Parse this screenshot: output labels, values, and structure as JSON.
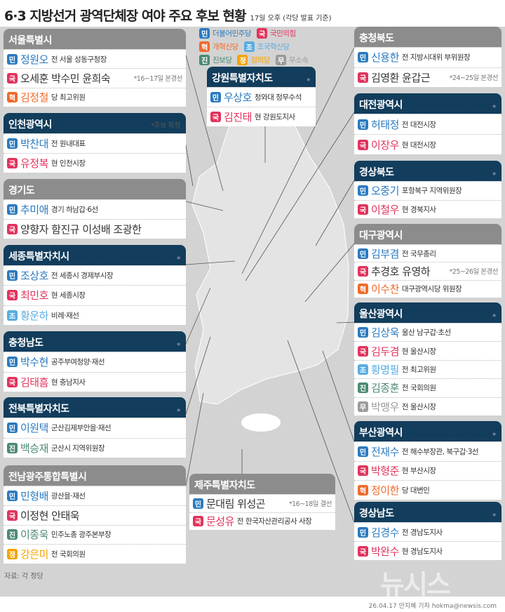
{
  "title": "6·3 지방선거 광역단체장 여야 주요 후보 현황",
  "subtitle": "17일 오후  (각당 발표 기준)",
  "parties": {
    "민": {
      "name": "더불어민주당",
      "color": "#2a7abf"
    },
    "국": {
      "name": "국민의힘",
      "color": "#e2335d"
    },
    "혁": {
      "name": "개혁신당",
      "color": "#f06a2a"
    },
    "조": {
      "name": "조국혁신당",
      "color": "#58ace2"
    },
    "진": {
      "name": "진보당",
      "color": "#4b8a72"
    },
    "정": {
      "name": "정의당",
      "color": "#f4a400"
    },
    "무": {
      "name": "무소속",
      "color": "#9b9b9b"
    }
  },
  "legend_rows": [
    [
      "민",
      "국"
    ],
    [
      "혁",
      "조"
    ],
    [
      "진",
      "정",
      "무"
    ]
  ],
  "boxes": [
    {
      "title": "서울특별시",
      "style": "gray",
      "rows": [
        {
          "party": "민",
          "names": "정원오",
          "desc": "전 서울 성동구청장"
        },
        {
          "party": "국",
          "names": "오세훈 박수민 윤희숙",
          "note": "*16~17일 본경선"
        },
        {
          "party": "혁",
          "names": "김정철",
          "desc": "당 최고위원"
        }
      ]
    },
    {
      "title": "인천광역시",
      "style": "navy",
      "note": "*후보 확정",
      "rows": [
        {
          "party": "민",
          "names": "박찬대",
          "desc": "전 원내대표"
        },
        {
          "party": "국",
          "names": "유정복",
          "desc": "현 인천시장"
        }
      ]
    },
    {
      "title": "경기도",
      "style": "gray",
      "rows": [
        {
          "party": "민",
          "names": "추미애",
          "desc": "경기 하남갑·6선"
        },
        {
          "party": "국",
          "names": "양향자 함진규 이성배 조광한"
        }
      ]
    },
    {
      "title": "세종특별자치시",
      "style": "navy",
      "mark": "*",
      "rows": [
        {
          "party": "민",
          "names": "조상호",
          "desc": "전 세종시 경제부시장"
        },
        {
          "party": "국",
          "names": "최민호",
          "desc": "현 세종시장"
        },
        {
          "party": "조",
          "names": "황운하",
          "desc": "비례·재선"
        }
      ]
    },
    {
      "title": "충청남도",
      "style": "navy",
      "mark": "*",
      "rows": [
        {
          "party": "민",
          "names": "박수현",
          "desc": "공주부여청양·재선"
        },
        {
          "party": "국",
          "names": "김태흠",
          "desc": "현 충남지사"
        }
      ]
    },
    {
      "title": "전북특별자치도",
      "style": "navy",
      "mark": "*",
      "rows": [
        {
          "party": "민",
          "names": "이원택",
          "desc": "군산김제부안을·재선"
        },
        {
          "party": "진",
          "names": "백승재",
          "desc": "군산시 지역위원장"
        }
      ]
    },
    {
      "title": "전남광주통합특별시",
      "style": "gray",
      "rows": [
        {
          "party": "민",
          "names": "민형배",
          "desc": "광산을·재선"
        },
        {
          "party": "국",
          "names": "이정현 안태욱"
        },
        {
          "party": "진",
          "names": "이종욱",
          "desc": "민주노총 광주본부장"
        },
        {
          "party": "정",
          "names": "강은미",
          "desc": "전 국회의원"
        }
      ]
    },
    {
      "title": "충청북도",
      "style": "gray",
      "rows": [
        {
          "party": "민",
          "names": "신용한",
          "desc": "전 지방시대위 부위원장"
        },
        {
          "party": "국",
          "names": "김영환 윤갑근",
          "note": "*24~25일 본경선"
        }
      ]
    },
    {
      "title": "대전광역시",
      "style": "navy",
      "mark": "*",
      "rows": [
        {
          "party": "민",
          "names": "허태정",
          "desc": "전 대전시장"
        },
        {
          "party": "국",
          "names": "이장우",
          "desc": "현 대전시장"
        }
      ]
    },
    {
      "title": "경상북도",
      "style": "navy",
      "mark": "*",
      "rows": [
        {
          "party": "민",
          "names": "오중기",
          "desc": "포항북구 지역위원장"
        },
        {
          "party": "국",
          "names": "이철우",
          "desc": "현 경북지사"
        }
      ]
    },
    {
      "title": "대구광역시",
      "style": "gray",
      "rows": [
        {
          "party": "민",
          "names": "김부겸",
          "desc": "전 국무총리"
        },
        {
          "party": "국",
          "names": "추경호 유영하",
          "note": "*25~26일 본경선"
        },
        {
          "party": "혁",
          "names": "이수찬",
          "desc": "대구광역시당 위원장"
        }
      ]
    },
    {
      "title": "울산광역시",
      "style": "navy",
      "mark": "*",
      "rows": [
        {
          "party": "민",
          "names": "김상욱",
          "desc": "울산 남구갑·초선"
        },
        {
          "party": "국",
          "names": "김두겸",
          "desc": "현 울산시장"
        },
        {
          "party": "조",
          "names": "황명필",
          "desc": "전 최고위원"
        },
        {
          "party": "진",
          "names": "김종훈",
          "desc": "전 국회의원"
        },
        {
          "party": "무",
          "names": "박맹우",
          "desc": "전 울산시장"
        }
      ]
    },
    {
      "title": "부산광역시",
      "style": "navy",
      "mark": "*",
      "rows": [
        {
          "party": "민",
          "names": "전재수",
          "desc": "전 해수부장관, 북구갑·3선"
        },
        {
          "party": "국",
          "names": "박형준",
          "desc": "현 부산시장"
        },
        {
          "party": "혁",
          "names": "정이한",
          "desc": "당 대변인"
        }
      ]
    },
    {
      "title": "경상남도",
      "style": "navy",
      "mark": "*",
      "rows": [
        {
          "party": "민",
          "names": "김경수",
          "desc": "전 경남도지사"
        },
        {
          "party": "국",
          "names": "박완수",
          "desc": "현 경남도지사"
        }
      ]
    },
    {
      "title": "강원특별자치도",
      "style": "navy",
      "mark": "*",
      "rows": [
        {
          "party": "민",
          "names": "우상호",
          "desc": "청와대 정무수석"
        },
        {
          "party": "국",
          "names": "김진태",
          "desc": "현 강원도지사"
        }
      ]
    },
    {
      "title": "제주특별자치도",
      "style": "gray",
      "rows": [
        {
          "party": "민",
          "names": "문대림 위성곤",
          "note": "*16~18일 결선"
        },
        {
          "party": "국",
          "names": "문성유",
          "desc": "전 한국자산관리공사 사장"
        }
      ]
    }
  ],
  "source": "자료: 각 정당",
  "logo": "뉴시스",
  "credit": "26.04.17 안지혜 기자 hokma@newsis.com"
}
